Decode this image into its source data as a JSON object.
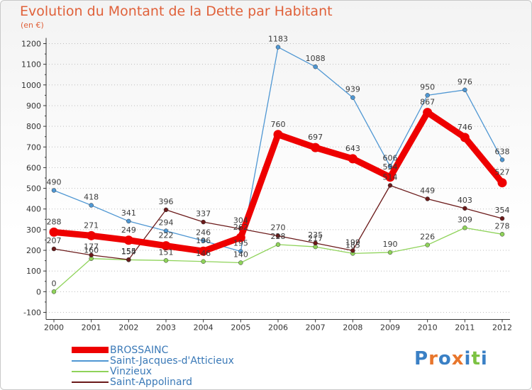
{
  "chart_data": {
    "type": "line",
    "title": "Evolution du Montant de la Dette par Habitant",
    "subtitle": "(en €)",
    "categories": [
      "2000",
      "2001",
      "2002",
      "2003",
      "2004",
      "2005",
      "2006",
      "2007",
      "2008",
      "2009",
      "2010",
      "2011",
      "2012"
    ],
    "ylim": [
      -100,
      1200
    ],
    "yticks": [
      -100,
      0,
      100,
      200,
      300,
      400,
      500,
      600,
      700,
      800,
      900,
      1000,
      1100,
      1200
    ],
    "grid": "horizontal dotted",
    "legend_position": "bottom-left",
    "series": [
      {
        "name": "BROSSAINC",
        "color": "#ee0000",
        "values": [
          288,
          271,
          249,
          222,
          196,
          262,
          760,
          697,
          643,
          554,
          867,
          746,
          527
        ]
      },
      {
        "name": "Saint-Jacques-d'Atticieux",
        "color": "#4f97d3",
        "values": [
          490,
          418,
          341,
          294,
          246,
          195,
          1183,
          1088,
          939,
          606,
          950,
          976,
          638
        ]
      },
      {
        "name": "Vinzieux",
        "color": "#8fd35a",
        "values": [
          0,
          160,
          154,
          151,
          146,
          140,
          228,
          217,
          185,
          190,
          226,
          309,
          278
        ]
      },
      {
        "name": "Saint-Appolinard",
        "color": "#6b1a1a",
        "values": [
          207,
          177,
          155,
          396,
          337,
          304,
          270,
          235,
          199,
          514,
          449,
          403,
          354
        ]
      }
    ]
  },
  "logo": {
    "text": "Proxiti",
    "colors": [
      "#3a80c5",
      "#e8762c",
      "#3a80c5",
      "#e8762c",
      "#3a80c5",
      "#7cc242",
      "#3a80c5"
    ]
  }
}
